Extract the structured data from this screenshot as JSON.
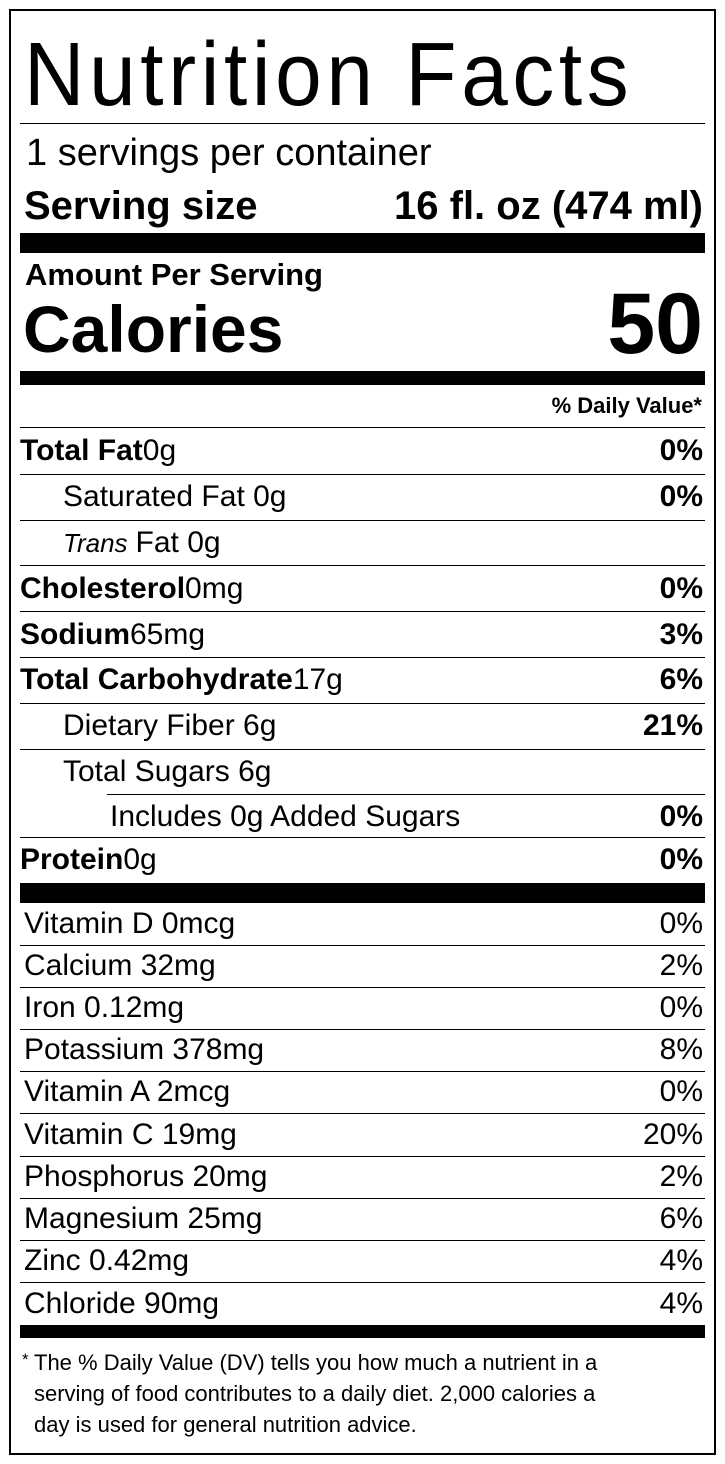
{
  "title": "Nutrition Facts",
  "servings_per_container": "1 servings per container",
  "serving_size": {
    "label": "Serving size",
    "value": "16 fl. oz (474 ml)"
  },
  "amount_per_serving": "Amount Per Serving",
  "calories": {
    "label": "Calories",
    "value": "50"
  },
  "daily_value_header": "% Daily Value*",
  "nutrients": [
    {
      "name": "Total Fat",
      "amount": " 0g",
      "dv": "0%"
    },
    {
      "name": "Saturated Fat 0g",
      "amount": "",
      "dv": "0%"
    },
    {
      "prefix": "Trans",
      "name": "Fat 0g",
      "amount": "",
      "dv": ""
    },
    {
      "name": "Cholesterol",
      "amount": " 0mg",
      "dv": "0%"
    },
    {
      "name": "Sodium",
      "amount": " 65mg",
      "dv": "3%"
    },
    {
      "name": "Total Carbohydrate",
      "amount": " 17g",
      "dv": "6%"
    },
    {
      "name": "Dietary Fiber 6g",
      "amount": "",
      "dv": "21%"
    },
    {
      "name": "Total Sugars 6g",
      "amount": "",
      "dv": ""
    },
    {
      "name": "Includes 0g Added Sugars",
      "amount": "",
      "dv": "0%"
    },
    {
      "name": "Protein",
      "amount": " 0g",
      "dv": "0%"
    }
  ],
  "vitamins": [
    {
      "name": "Vitamin D 0mcg",
      "dv": "0%"
    },
    {
      "name": "Calcium 32mg",
      "dv": "2%"
    },
    {
      "name": "Iron 0.12mg",
      "dv": "0%"
    },
    {
      "name": "Potassium 378mg",
      "dv": "8%"
    },
    {
      "name": "Vitamin A 2mcg",
      "dv": "0%"
    },
    {
      "name": "Vitamin C 19mg",
      "dv": "20%"
    },
    {
      "name": "Phosphorus 20mg",
      "dv": "2%"
    },
    {
      "name": "Magnesium 25mg",
      "dv": "6%"
    },
    {
      "name": "Zinc 0.42mg",
      "dv": "4%"
    },
    {
      "name": "Chloride 90mg",
      "dv": "4%"
    }
  ],
  "footnote": {
    "star": "*",
    "lines": [
      "The % Daily Value (DV) tells you how much a nutrient in a",
      "serving of food contributes to a daily diet. 2,000 calories a",
      "day is used for general nutrition advice."
    ]
  }
}
